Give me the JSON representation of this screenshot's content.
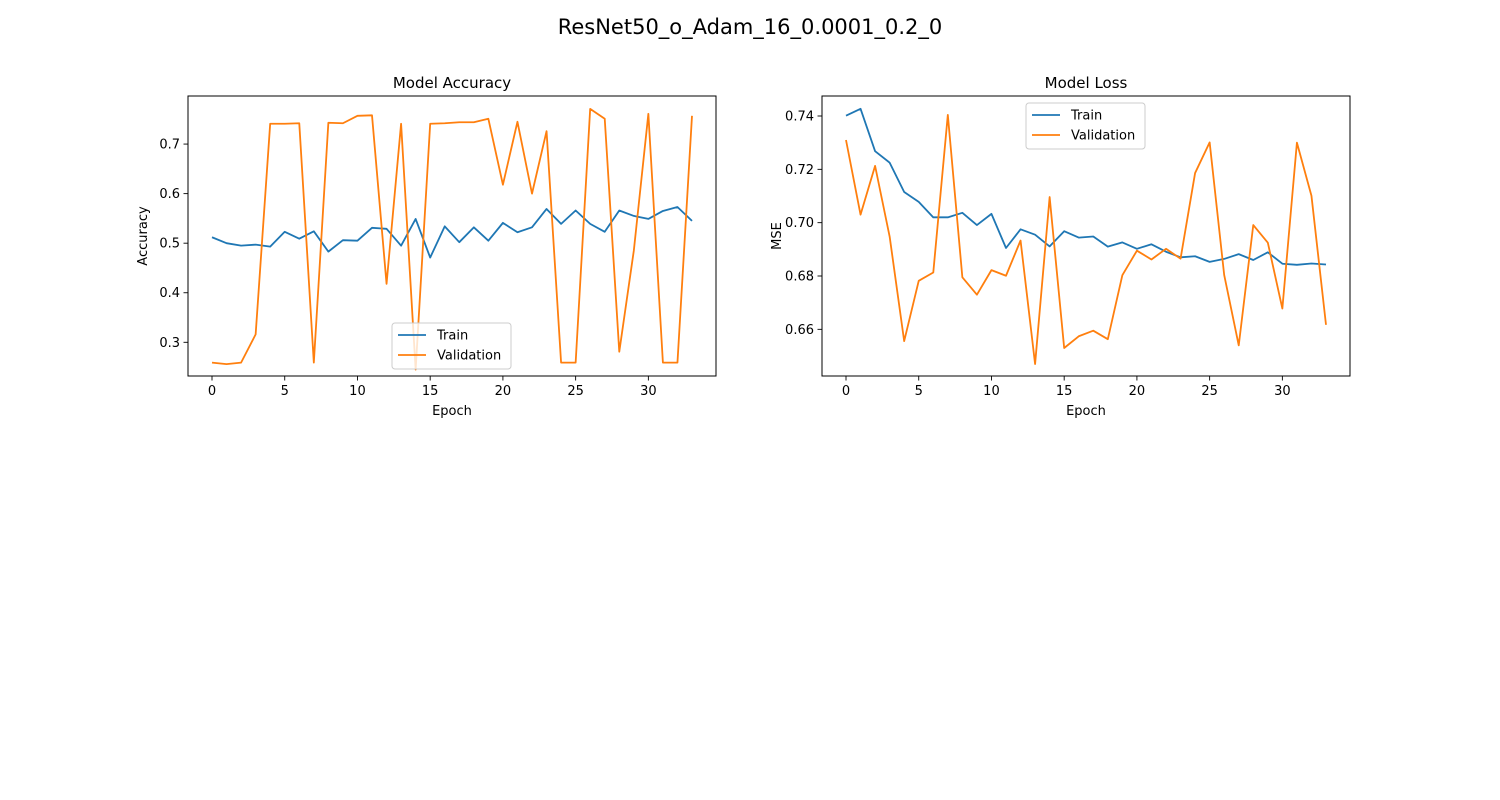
{
  "suptitle": "ResNet50_o_Adam_16_0.0001_0.2_0",
  "colors": {
    "train": "#1f77b4",
    "validation": "#ff7f0e"
  },
  "chart_data": [
    {
      "type": "line",
      "title": "Model Accuracy",
      "xlabel": "Epoch",
      "ylabel": "Accuracy",
      "xlim": [
        -1.65,
        34.65
      ],
      "ylim": [
        0.232,
        0.797
      ],
      "xticks": [
        0,
        5,
        10,
        15,
        20,
        25,
        30
      ],
      "xtick_labels": [
        "0",
        "5",
        "10",
        "15",
        "20",
        "25",
        "30"
      ],
      "yticks": [
        0.3,
        0.4,
        0.5,
        0.6,
        0.7
      ],
      "ytick_labels": [
        "0.3",
        "0.4",
        "0.5",
        "0.6",
        "0.7"
      ],
      "legend_placement": "lower center",
      "grid": false,
      "x": [
        0,
        1,
        2,
        3,
        4,
        5,
        6,
        7,
        8,
        9,
        10,
        11,
        12,
        13,
        14,
        15,
        16,
        17,
        18,
        19,
        20,
        21,
        22,
        23,
        24,
        25,
        26,
        27,
        28,
        29,
        30,
        31,
        32,
        33
      ],
      "series": [
        {
          "name": "Train",
          "color": "#1f77b4",
          "values": [
            0.512,
            0.5,
            0.495,
            0.497,
            0.493,
            0.523,
            0.509,
            0.524,
            0.483,
            0.506,
            0.505,
            0.531,
            0.529,
            0.495,
            0.549,
            0.471,
            0.534,
            0.502,
            0.532,
            0.505,
            0.541,
            0.522,
            0.532,
            0.569,
            0.539,
            0.566,
            0.539,
            0.523,
            0.566,
            0.555,
            0.549,
            0.565,
            0.573,
            0.545
          ]
        },
        {
          "name": "Validation",
          "color": "#ff7f0e",
          "values": [
            0.259,
            0.256,
            0.259,
            0.316,
            0.741,
            0.741,
            0.742,
            0.259,
            0.743,
            0.742,
            0.757,
            0.758,
            0.418,
            0.741,
            0.245,
            0.741,
            0.742,
            0.744,
            0.744,
            0.751,
            0.618,
            0.745,
            0.6,
            0.726,
            0.259,
            0.259,
            0.771,
            0.751,
            0.281,
            0.485,
            0.761,
            0.259,
            0.259,
            0.757
          ]
        }
      ]
    },
    {
      "type": "line",
      "title": "Model Loss",
      "xlabel": "Epoch",
      "ylabel": "MSE",
      "xlim": [
        -1.65,
        34.65
      ],
      "ylim": [
        0.6425,
        0.7475
      ],
      "xticks": [
        0,
        5,
        10,
        15,
        20,
        25,
        30
      ],
      "xtick_labels": [
        "0",
        "5",
        "10",
        "15",
        "20",
        "25",
        "30"
      ],
      "yticks": [
        0.66,
        0.68,
        0.7,
        0.72,
        0.74
      ],
      "ytick_labels": [
        "0.66",
        "0.68",
        "0.70",
        "0.72",
        "0.74"
      ],
      "legend_placement": "upper center",
      "grid": false,
      "x": [
        0,
        1,
        2,
        3,
        4,
        5,
        6,
        7,
        8,
        9,
        10,
        11,
        12,
        13,
        14,
        15,
        16,
        17,
        18,
        19,
        20,
        21,
        22,
        23,
        24,
        25,
        26,
        27,
        28,
        29,
        30,
        31,
        32,
        33
      ],
      "series": [
        {
          "name": "Train",
          "color": "#1f77b4",
          "values": [
            0.7401,
            0.7427,
            0.7268,
            0.7225,
            0.7115,
            0.7078,
            0.702,
            0.702,
            0.7037,
            0.6991,
            0.7033,
            0.6905,
            0.6975,
            0.6955,
            0.6911,
            0.6968,
            0.6944,
            0.6948,
            0.691,
            0.6926,
            0.6902,
            0.6919,
            0.6891,
            0.687,
            0.6874,
            0.6853,
            0.6864,
            0.6882,
            0.686,
            0.6889,
            0.6846,
            0.6842,
            0.6847,
            0.6843
          ]
        },
        {
          "name": "Validation",
          "color": "#ff7f0e",
          "values": [
            0.731,
            0.703,
            0.7213,
            0.6948,
            0.6556,
            0.6782,
            0.6813,
            0.7404,
            0.6795,
            0.673,
            0.6822,
            0.6801,
            0.6933,
            0.647,
            0.7096,
            0.653,
            0.6574,
            0.6595,
            0.6563,
            0.6803,
            0.6895,
            0.6862,
            0.6902,
            0.6865,
            0.7186,
            0.7301,
            0.6804,
            0.654,
            0.6991,
            0.6925,
            0.6678,
            0.73,
            0.7101,
            0.6617
          ]
        }
      ]
    }
  ]
}
